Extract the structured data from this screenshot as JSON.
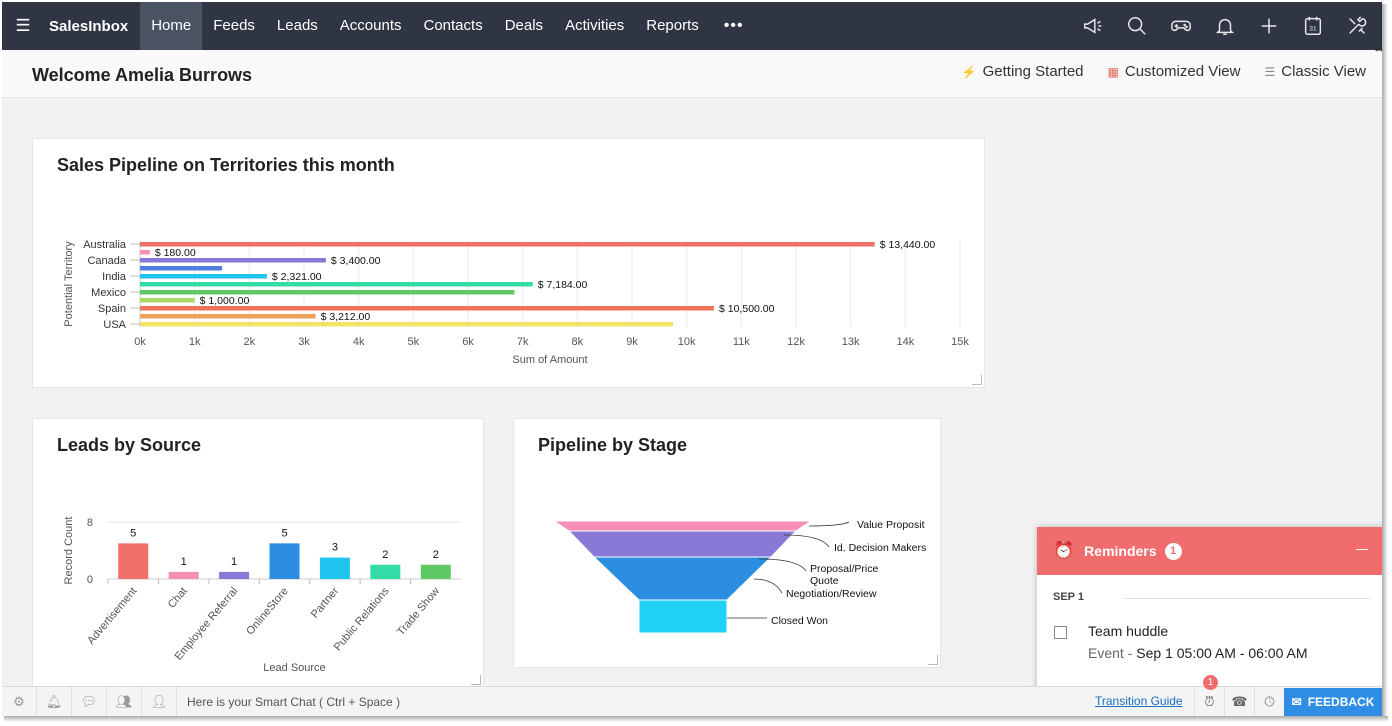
{
  "nav": {
    "brand": "SalesInbox",
    "tabs": [
      "Home",
      "Feeds",
      "Leads",
      "Accounts",
      "Contacts",
      "Deals",
      "Activities",
      "Reports"
    ],
    "active_tab": "Home",
    "more": "•••",
    "icons": [
      "megaphone-icon",
      "search-icon",
      "gamepad-icon",
      "bell-icon",
      "plus-icon",
      "calendar-icon",
      "tools-icon"
    ],
    "calendar_day": "31"
  },
  "header": {
    "welcome": "Welcome Amelia Burrows",
    "getting_started": "Getting Started",
    "customized_view": "Customized View",
    "classic_view": "Classic View"
  },
  "pipeline_card": {
    "title": "Sales Pipeline on Territories this month"
  },
  "leads_card": {
    "title": "Leads by Source"
  },
  "stage_card": {
    "title": "Pipeline by Stage"
  },
  "chart_data": [
    {
      "type": "bar",
      "orientation": "horizontal",
      "title": "Sales Pipeline on Territories this month",
      "ylabel": "Potential Territory",
      "xlabel": "Sum of Amount",
      "xlim": [
        0,
        15000
      ],
      "x_ticks": [
        "0k",
        "1k",
        "2k",
        "3k",
        "4k",
        "5k",
        "6k",
        "7k",
        "8k",
        "9k",
        "10k",
        "11k",
        "12k",
        "13k",
        "14k",
        "15k"
      ],
      "grid": true,
      "categories": [
        "Australia",
        "Canada",
        "India",
        "Mexico",
        "Spain",
        "USA"
      ],
      "bars": [
        {
          "value": 13440,
          "label": "$ 13,440.00",
          "color": "#f0706a"
        },
        {
          "value": 180,
          "label": "$ 180.00",
          "color": "#f68fb6"
        },
        {
          "value": 3400,
          "label": "$ 3,400.00",
          "color": "#8a78d6"
        },
        {
          "value": 1500,
          "label": "",
          "color": "#4e7fe0"
        },
        {
          "value": 2321,
          "label": "$ 2,321.00",
          "color": "#1fc5ee"
        },
        {
          "value": 7184,
          "label": "$ 7,184.00",
          "color": "#33dba6"
        },
        {
          "value": 6850,
          "label": "",
          "color": "#5dc864"
        },
        {
          "value": 1000,
          "label": "$ 1,000.00",
          "color": "#a8d866"
        },
        {
          "value": 10500,
          "label": "$ 10,500.00",
          "color": "#ef7559"
        },
        {
          "value": 3212,
          "label": "$ 3,212.00",
          "color": "#f0a05a"
        },
        {
          "value": 9750,
          "label": "",
          "color": "#f5e06a"
        }
      ]
    },
    {
      "type": "bar",
      "title": "Leads by Source",
      "xlabel": "Lead Source",
      "ylabel": "Record Count",
      "ylim": [
        0,
        8
      ],
      "y_ticks": [
        "0",
        "8"
      ],
      "categories": [
        "Advertisement",
        "Chat",
        "Employee Referral",
        "OnlineStore",
        "Partner",
        "Public Relations",
        "Trade Show"
      ],
      "values": [
        5,
        1,
        1,
        5,
        3,
        2,
        2
      ],
      "colors": [
        "#f0706a",
        "#f68fb6",
        "#8a78d6",
        "#2b8ee0",
        "#1fc5ee",
        "#33dba6",
        "#5dc864"
      ]
    },
    {
      "type": "funnel",
      "title": "Pipeline by Stage",
      "stages": [
        {
          "label": "Value Proposit",
          "color": "#f68fb6"
        },
        {
          "label": "Id. Decision Makers",
          "color": "#8a78d6"
        },
        {
          "label": "Proposal/Price Quote",
          "color": "#2b8ee0"
        },
        {
          "label": "Negotiation/Review",
          "color": "#2b8ee0"
        },
        {
          "label": "Closed Won",
          "color": "#1fd2f6"
        }
      ]
    }
  ],
  "reminders": {
    "title": "Reminders",
    "count": "1",
    "date": "SEP 1",
    "item_title": "Team huddle",
    "item_type": "Event",
    "item_sep": "-",
    "item_time": "Sep 1 05:00 AM - 06:00 AM"
  },
  "bottombar": {
    "smartchat": "Here is your Smart Chat ( Ctrl + Space )",
    "transition_guide": "Transition Guide",
    "notification_count": "1",
    "feedback": "FEEDBACK"
  }
}
